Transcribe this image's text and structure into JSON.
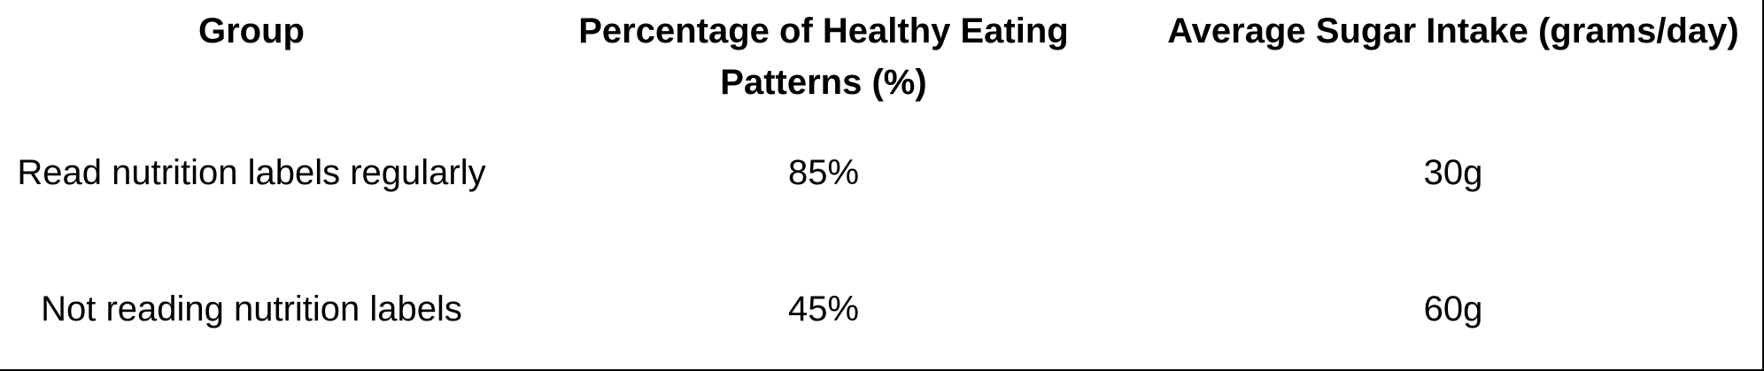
{
  "chart_data": {
    "type": "table",
    "columns": [
      "Group",
      "Percentage of Healthy Eating Patterns (%)",
      "Average Sugar Intake (grams/day)"
    ],
    "rows": [
      [
        "Read nutrition labels regularly",
        "85%",
        "30g"
      ],
      [
        "Not reading nutrition labels",
        "45%",
        "60g"
      ]
    ]
  }
}
